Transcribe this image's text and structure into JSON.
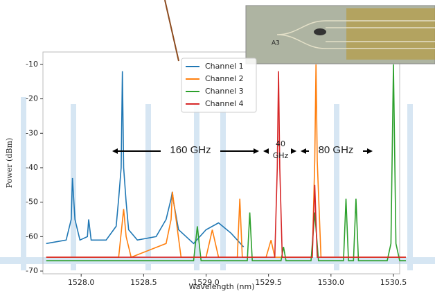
{
  "chart_data": {
    "type": "line",
    "x_label": "Wavelength (nm)",
    "y_label": "Power (dBm)",
    "xlim": [
      1527.694,
      1530.55
    ],
    "ylim": [
      -70.8,
      -6.4
    ],
    "xticks": [
      {
        "value": 1528,
        "label": "1528.0"
      },
      1528.5,
      {
        "value": 1529,
        "label": "1529.0"
      },
      1529.5,
      {
        "value": 1530,
        "label": "1530.0"
      },
      1530.5
    ],
    "yticks": [
      -70,
      -60,
      -50,
      -40,
      -30,
      -20,
      -10
    ],
    "legend": "upper-center",
    "annotations": [
      "160 GHz",
      "40",
      "GHz",
      "80 GHz"
    ],
    "inset_label": "A3",
    "series": [
      {
        "name": "Channel 1",
        "color": "#1f77b4",
        "x": [
          1527.72,
          1527.88,
          1527.92,
          1527.93,
          1527.95,
          1527.99,
          1528.05,
          1528.06,
          1528.08,
          1528.2,
          1528.28,
          1528.3,
          1528.32,
          1528.33,
          1528.34,
          1528.36,
          1528.38,
          1528.45,
          1528.6,
          1528.68,
          1528.72,
          1528.73,
          1528.74,
          1528.78,
          1528.9,
          1529.0,
          1529.1,
          1529.2,
          1529.3
        ],
        "values": [
          -62,
          -61,
          -55,
          -43,
          -55,
          -61,
          -60,
          -55,
          -61,
          -61,
          -57,
          -49,
          -40,
          -12,
          -40,
          -50,
          -58,
          -61,
          -60,
          -55,
          -49,
          -47,
          -50,
          -58,
          -62,
          -58,
          -56,
          -59,
          -63
        ]
      },
      {
        "name": "Channel 2",
        "color": "#ff7f0e",
        "x": [
          1527.72,
          1528.3,
          1528.34,
          1528.36,
          1528.4,
          1528.68,
          1528.72,
          1528.73,
          1528.76,
          1528.8,
          1529.0,
          1529.05,
          1529.1,
          1529.25,
          1529.27,
          1529.29,
          1529.48,
          1529.52,
          1529.55,
          1529.85,
          1529.87,
          1529.88,
          1529.89,
          1529.92,
          1530.2,
          1530.6
        ],
        "values": [
          -66,
          -66,
          -52,
          -60,
          -66,
          -62,
          -55,
          -47,
          -55,
          -66,
          -66,
          -58,
          -66,
          -66,
          -49,
          -66,
          -66,
          -61,
          -66,
          -66,
          -38,
          -10,
          -38,
          -66,
          -66,
          -66
        ]
      },
      {
        "name": "Channel 3",
        "color": "#2ca02c",
        "x": [
          1527.72,
          1528.9,
          1528.93,
          1528.96,
          1529.33,
          1529.35,
          1529.37,
          1529.6,
          1529.62,
          1529.64,
          1529.84,
          1529.87,
          1529.9,
          1530.1,
          1530.12,
          1530.14,
          1530.18,
          1530.2,
          1530.22,
          1530.45,
          1530.48,
          1530.5,
          1530.52,
          1530.55,
          1530.6
        ],
        "values": [
          -67,
          -67,
          -57,
          -67,
          -67,
          -53,
          -67,
          -67,
          -63,
          -67,
          -67,
          -53,
          -67,
          -67,
          -49,
          -67,
          -67,
          -49,
          -67,
          -67,
          -62,
          -10,
          -62,
          -67,
          -67
        ]
      },
      {
        "name": "Channel 4",
        "color": "#d62728",
        "x": [
          1527.72,
          1529.55,
          1529.57,
          1529.58,
          1529.59,
          1529.61,
          1529.85,
          1529.87,
          1529.89,
          1530.6
        ],
        "values": [
          -66,
          -66,
          -40,
          -12,
          -40,
          -66,
          -66,
          -45,
          -66,
          -66
        ]
      }
    ]
  }
}
